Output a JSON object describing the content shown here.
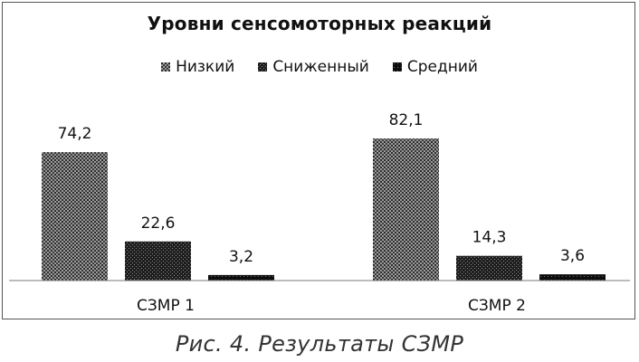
{
  "chart_data": {
    "type": "bar",
    "title": "Уровни сенсомоторных реакций",
    "categories": [
      "СЗМР 1",
      "СЗМР 2"
    ],
    "series": [
      {
        "name": "Низкий",
        "values": [
          74.2,
          82.1
        ],
        "labels": [
          "74,2",
          "82,1"
        ],
        "pattern": "pat-low"
      },
      {
        "name": "Сниженный",
        "values": [
          22.6,
          14.3
        ],
        "labels": [
          "22,6",
          "14,3"
        ],
        "pattern": "pat-reduced"
      },
      {
        "name": "Средний",
        "values": [
          3.2,
          3.6
        ],
        "labels": [
          "3,2",
          "3,6"
        ],
        "pattern": "pat-mid"
      }
    ],
    "xlabel": "",
    "ylabel": "",
    "ylim": [
      0,
      82.1
    ],
    "grid": false,
    "legend_position": "top"
  },
  "caption": "Рис. 4. Результаты СЗМР"
}
